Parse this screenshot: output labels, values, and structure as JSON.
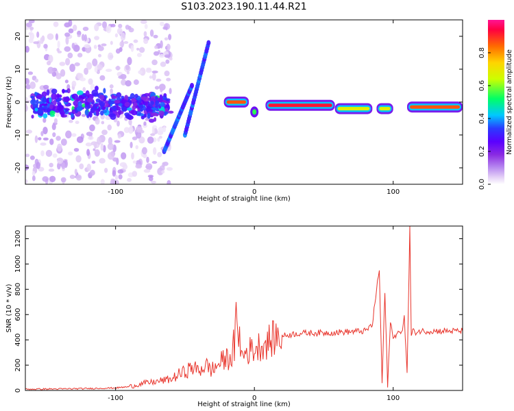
{
  "title": "S103.2023.190.11.44.R21",
  "chart_data": [
    {
      "type": "heatmap",
      "xlabel": "Height of straight line (km)",
      "ylabel": "Frequency (Hz)",
      "xlim": [
        -165,
        150
      ],
      "ylim": [
        -25,
        25
      ],
      "xticks": [
        -100,
        0,
        100
      ],
      "yticks": [
        -20,
        -10,
        0,
        10,
        20
      ],
      "grid": false,
      "colorbar": {
        "label": "Normalized spectral amplitude",
        "range": [
          0,
          1
        ],
        "ticks": [
          "0.0",
          "0.2",
          "0.4",
          "0.6",
          "0.8"
        ],
        "colormap": [
          "#ffffff",
          "#e6d3f7",
          "#b98cf0",
          "#8a2be2",
          "#5a00ff",
          "#2a3bff",
          "#00c8ff",
          "#00ff66",
          "#ccff00",
          "#ffd400",
          "#ff6a00",
          "#ff0040",
          "#ff1493"
        ]
      },
      "features": [
        {
          "name": "scattered noise",
          "x": [
            -165,
            -60
          ],
          "y": [
            -25,
            25
          ],
          "amplitude": 0.15
        },
        {
          "name": "dense band near 0 Hz",
          "x": [
            -160,
            -60
          ],
          "y": [
            -6,
            6
          ],
          "amplitude": 0.25
        },
        {
          "name": "chirp lower",
          "x_start": -65,
          "y_start": -15,
          "x_end": -45,
          "y_end": 5,
          "amplitude": 0.35
        },
        {
          "name": "chirp upper",
          "x_start": -50,
          "y_start": -10,
          "x_end": -33,
          "y_end": 18,
          "amplitude": 0.35
        },
        {
          "name": "tone segment",
          "x": [
            -22,
            -4
          ],
          "y": 0,
          "amplitude": 0.85
        },
        {
          "name": "dip",
          "x": 0,
          "y": -3,
          "amplitude": 0.6
        },
        {
          "name": "tone segment",
          "x": [
            8,
            58
          ],
          "y": -1,
          "amplitude": 0.9
        },
        {
          "name": "tone segment",
          "x": [
            58,
            85
          ],
          "y": -2,
          "amplitude": 0.7
        },
        {
          "name": "tone segment",
          "x": [
            88,
            100
          ],
          "y": -2,
          "amplitude": 0.7
        },
        {
          "name": "tone segment",
          "x": [
            110,
            150
          ],
          "y": -1.5,
          "amplitude": 0.85
        }
      ]
    },
    {
      "type": "line",
      "xlabel": "Height of straight line (km)",
      "ylabel": "SNR (10 * v/v)",
      "xlim": [
        -165,
        150
      ],
      "ylim": [
        0,
        1300
      ],
      "xticks": [
        -100,
        0,
        100
      ],
      "yticks": [
        0,
        200,
        400,
        600,
        800,
        1000,
        1200
      ],
      "color": "#e8332a",
      "grid": false,
      "series": [
        {
          "x": [
            -165,
            -140,
            -120,
            -100,
            -90,
            -80,
            -70,
            -60,
            -55,
            -50,
            -45,
            -40,
            -35,
            -30,
            -25,
            -20,
            -15,
            -12,
            -10,
            -5,
            0,
            5,
            10,
            15,
            20,
            30,
            40,
            50,
            60,
            70,
            80,
            85,
            88,
            90,
            92,
            94,
            96,
            98,
            100,
            103,
            106,
            108,
            110,
            112,
            113,
            114,
            115,
            120,
            130,
            140,
            150
          ],
          "y": [
            10,
            12,
            15,
            20,
            30,
            55,
            70,
            90,
            120,
            150,
            180,
            160,
            200,
            160,
            220,
            250,
            280,
            630,
            270,
            310,
            330,
            360,
            380,
            420,
            430,
            450,
            455,
            455,
            460,
            465,
            470,
            520,
            800,
            950,
            60,
            780,
            30,
            560,
            400,
            470,
            440,
            600,
            120,
            1300,
            420,
            480,
            460,
            470,
            470,
            470,
            470
          ],
          "points": "jagged noisy trace"
        }
      ]
    }
  ]
}
